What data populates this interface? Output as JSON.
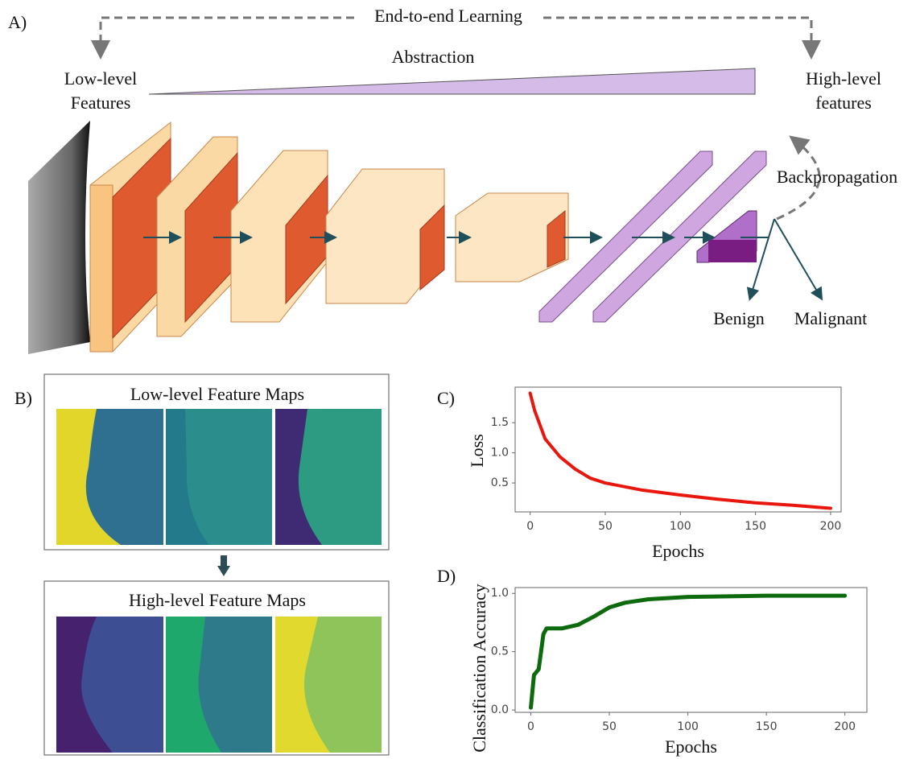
{
  "panel_a": {
    "label": "A)",
    "top_label": "End-to-end Learning",
    "abstraction": "Abstraction",
    "low_level": [
      "Low-level",
      "Features"
    ],
    "high_level": [
      "High-level",
      "features"
    ],
    "backprop": "Backpropagation",
    "outputs": [
      "Benign",
      "Malignant"
    ]
  },
  "panel_b": {
    "label": "B)",
    "low_title": "Low-level Feature Maps",
    "high_title": "High-level Feature Maps"
  },
  "chart_data": [
    {
      "type": "line",
      "label": "C)",
      "ylabel": "Loss",
      "xlabel": "Epochs",
      "x": [
        0,
        3,
        10,
        20,
        30,
        40,
        50,
        75,
        100,
        125,
        150,
        175,
        200
      ],
      "values": [
        1.99,
        1.7,
        1.23,
        0.93,
        0.73,
        0.58,
        0.5,
        0.38,
        0.3,
        0.23,
        0.17,
        0.13,
        0.08
      ],
      "color": "#e8160c",
      "xlim": [
        -10,
        207
      ],
      "ylim": [
        0.02,
        2.09
      ],
      "xticks": [
        0,
        50,
        100,
        150,
        200
      ],
      "yticks": [
        0.5,
        {
          "value": 1,
          "label": "1.0"
        },
        1.5
      ]
    },
    {
      "type": "line",
      "label": "D)",
      "ylabel": "Classification Accuracy",
      "xlabel": "Epochs",
      "x": [
        0,
        2,
        5,
        8,
        10,
        20,
        30,
        40,
        50,
        60,
        75,
        100,
        150,
        200
      ],
      "values": [
        0.02,
        0.3,
        0.35,
        0.65,
        0.7,
        0.7,
        0.73,
        0.8,
        0.88,
        0.92,
        0.95,
        0.97,
        0.98,
        0.98
      ],
      "color": "#0d6b0d",
      "xlim": [
        -10,
        214
      ],
      "ylim": [
        -0.02,
        1.05
      ],
      "xticks": [
        0,
        50,
        100,
        150,
        200
      ],
      "yticks": [
        {
          "value": 0,
          "label": "0.0"
        },
        0.5,
        {
          "value": 1,
          "label": "1.0"
        }
      ]
    }
  ]
}
